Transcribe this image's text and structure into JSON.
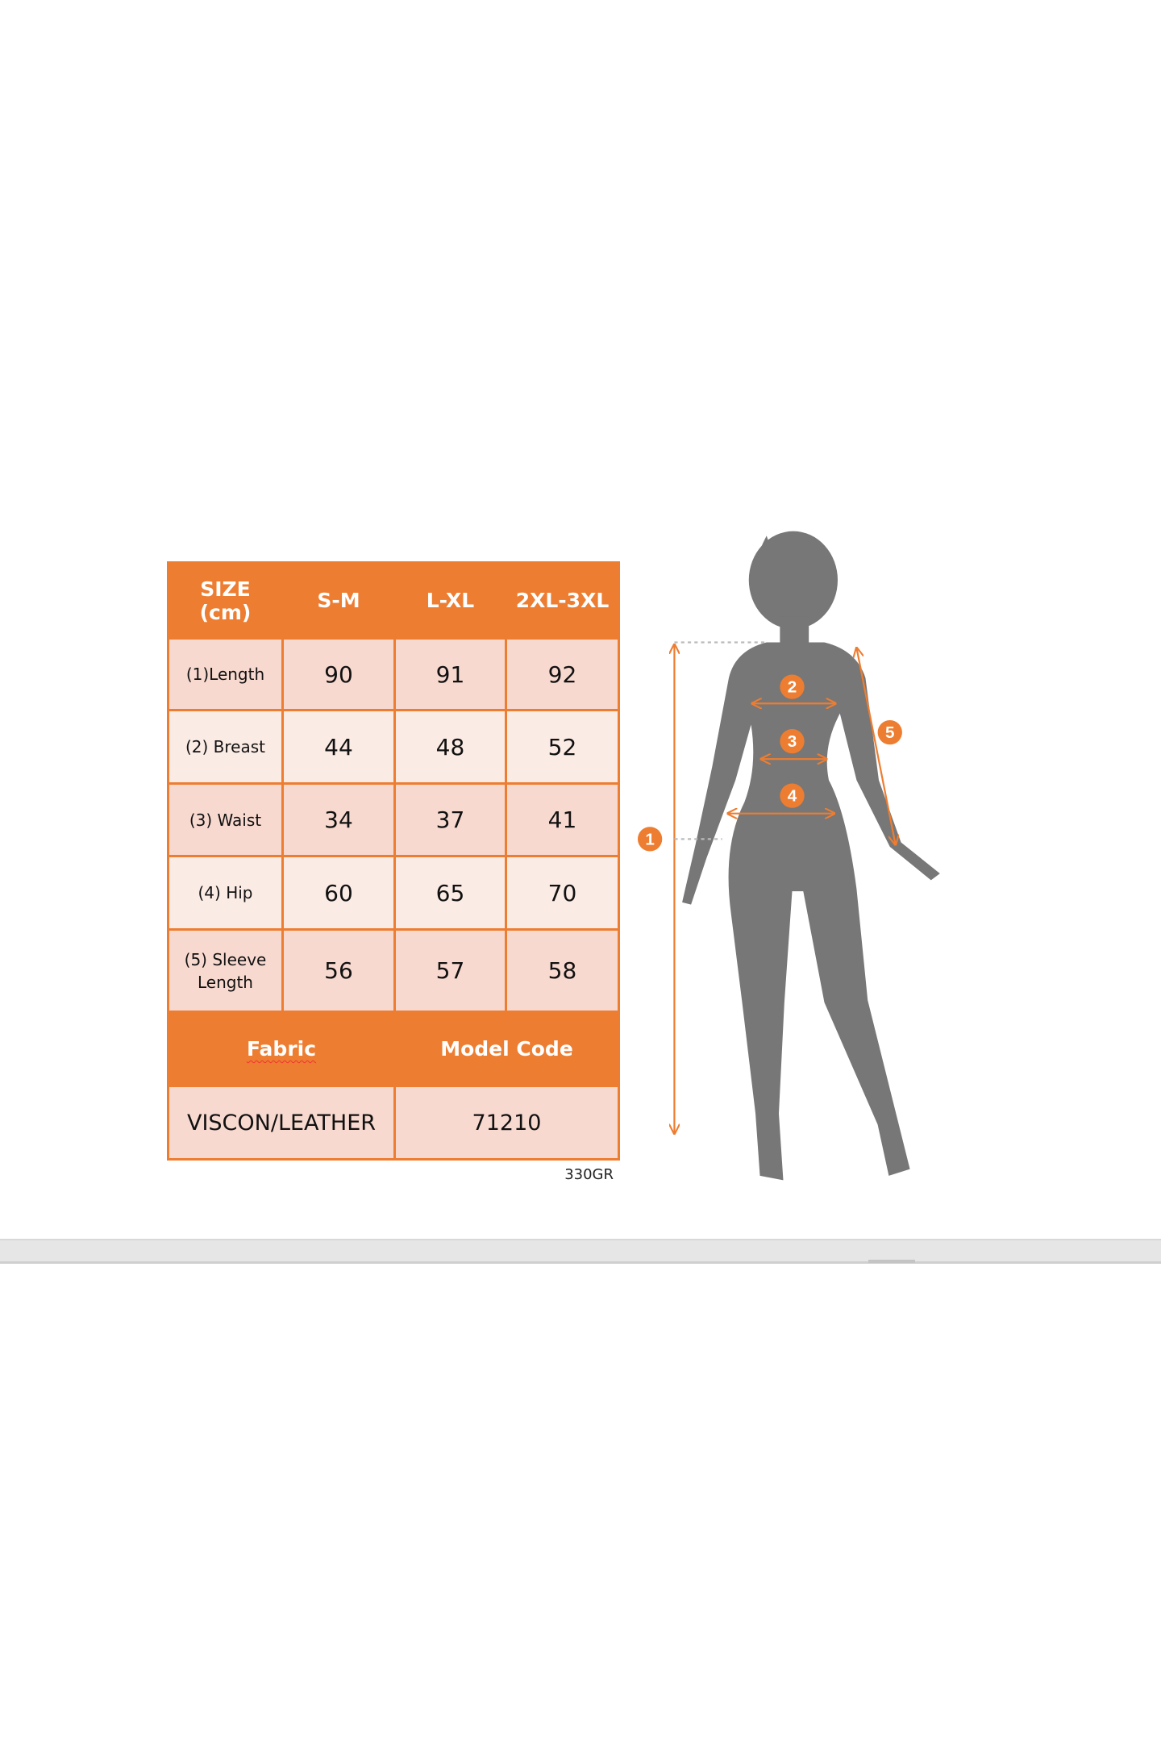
{
  "size_table": {
    "header": [
      "SIZE\n(cm)",
      "S-M",
      "L-XL",
      "2XL-3XL"
    ],
    "header_line1": "SIZE",
    "header_line2": "(cm)",
    "rows": [
      {
        "label": "(1)Length",
        "values": [
          "90",
          "91",
          "92"
        ]
      },
      {
        "label": "(2) Breast",
        "values": [
          "44",
          "48",
          "52"
        ]
      },
      {
        "label": "(3) Waist",
        "values": [
          "34",
          "37",
          "41"
        ]
      },
      {
        "label": "(4) Hip",
        "values": [
          "60",
          "65",
          "70"
        ]
      },
      {
        "label_line1": "(5) Sleeve",
        "label_line2": "Length",
        "values": [
          "56",
          "57",
          "58"
        ]
      }
    ],
    "footer_headers": [
      "Fabric",
      "Model Code"
    ],
    "footer_values": [
      "VISCON/LEATHER",
      "71210"
    ],
    "note": "330GR"
  },
  "figure": {
    "markers": [
      "1",
      "2",
      "3",
      "4",
      "5"
    ],
    "accent_color": "#ED7D31",
    "silhouette_color": "#777777"
  },
  "colors": {
    "header": "#ED7D31",
    "cell_dark": "#F8D9CF",
    "cell_light": "#FBEBE5"
  }
}
